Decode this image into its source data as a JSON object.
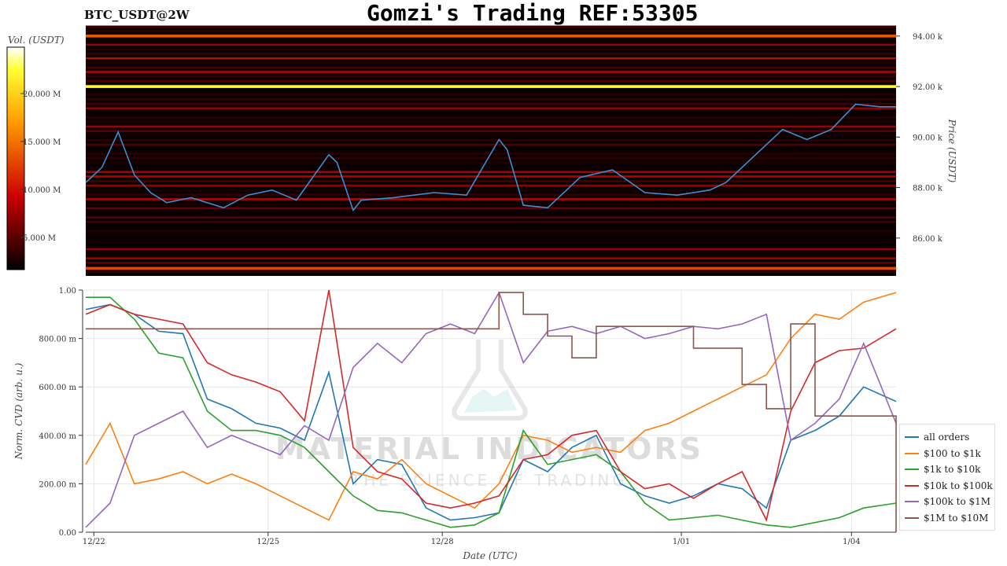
{
  "header": {
    "symbol": "BTC_USDT@2W",
    "title": "Gomzi's Trading REF:53305"
  },
  "colorbar": {
    "label": "Vol. (USDT)",
    "ticks": [
      "20.000 M",
      "15.000 M",
      "10.000 M",
      "5.000 M"
    ]
  },
  "heatmap": {
    "ylabel": "Price (USDT)",
    "price_ticks": [
      "94.00 k",
      "92.00 k",
      "90.00 k",
      "88.00 k",
      "86.00 k"
    ]
  },
  "cvd": {
    "ylabel": "Norm. CVD (arb. u.)",
    "xlabel": "Date (UTC)",
    "y_ticks": [
      "1.00",
      "800.00 m",
      "600.00 m",
      "400.00 m",
      "200.00 m",
      "0.00"
    ],
    "x_ticks": [
      "12/22",
      "12/25",
      "12/28",
      "1/01",
      "1/04"
    ]
  },
  "watermark": {
    "brand": "MATERIAL INDICATORS",
    "tagline": "THE SCIENCE OF TRADING"
  },
  "legend": {
    "items": [
      {
        "label": "all orders",
        "color": "#1f77b4"
      },
      {
        "label": "$100 to $1k",
        "color": "#ff7f0e"
      },
      {
        "label": "$1k to $10k",
        "color": "#2ca02c"
      },
      {
        "label": "$10k to $100k",
        "color": "#d62728"
      },
      {
        "label": "$100k to $1M",
        "color": "#9467bd"
      },
      {
        "label": "$1M to $10M",
        "color": "#8c564b"
      }
    ]
  },
  "chart_data": [
    {
      "type": "heatmap",
      "title": "",
      "xlabel": "",
      "ylabel": "Price (USDT)",
      "ylim": [
        84500,
        94400
      ],
      "colorbar_range": [
        0,
        23000000
      ],
      "colormap": "hot",
      "notable_levels": [
        {
          "price": 94000,
          "volume": 12000000
        },
        {
          "price": 92000,
          "volume": 23000000
        },
        {
          "price": 84800,
          "volume": 11000000
        }
      ],
      "price_line": {
        "x": [
          0,
          2,
          4,
          6,
          8,
          10,
          13,
          17,
          20,
          23,
          26,
          30,
          31,
          33,
          34,
          38,
          43,
          47,
          51,
          52,
          54,
          57,
          61,
          65,
          69,
          73,
          77,
          79,
          82,
          86,
          89,
          92,
          95,
          98,
          100
        ],
        "y": [
          88200,
          88800,
          90200,
          88500,
          87800,
          87400,
          87600,
          87200,
          87700,
          87900,
          87500,
          89300,
          89000,
          87100,
          87500,
          87600,
          87800,
          87700,
          89900,
          89500,
          87300,
          87200,
          88400,
          88700,
          87800,
          87700,
          87900,
          88200,
          89100,
          90300,
          89900,
          90300,
          91300,
          91200,
          91200
        ]
      }
    },
    {
      "type": "line",
      "title": "",
      "xlabel": "Date (UTC)",
      "ylabel": "Norm. CVD (arb. u.)",
      "ylim": [
        0,
        1
      ],
      "categories": [
        "12/22",
        "12/25",
        "12/28",
        "1/01",
        "1/04"
      ],
      "x": [
        0,
        3,
        6,
        9,
        12,
        15,
        18,
        21,
        24,
        27,
        30,
        33,
        36,
        39,
        42,
        45,
        48,
        51,
        54,
        57,
        60,
        63,
        66,
        69,
        72,
        75,
        78,
        81,
        84,
        87,
        90,
        93,
        96,
        100
      ],
      "series": [
        {
          "name": "all orders",
          "values": [
            0.92,
            0.94,
            0.9,
            0.83,
            0.82,
            0.55,
            0.51,
            0.45,
            0.43,
            0.38,
            0.66,
            0.2,
            0.3,
            0.28,
            0.1,
            0.05,
            0.06,
            0.08,
            0.3,
            0.25,
            0.35,
            0.4,
            0.2,
            0.15,
            0.12,
            0.15,
            0.2,
            0.18,
            0.1,
            0.38,
            0.42,
            0.48,
            0.6,
            0.54
          ]
        },
        {
          "name": "$100 to $1k",
          "values": [
            0.28,
            0.45,
            0.2,
            0.22,
            0.25,
            0.2,
            0.24,
            0.2,
            0.15,
            0.1,
            0.05,
            0.25,
            0.22,
            0.3,
            0.2,
            0.15,
            0.1,
            0.2,
            0.4,
            0.38,
            0.33,
            0.35,
            0.33,
            0.42,
            0.45,
            0.5,
            0.55,
            0.6,
            0.65,
            0.8,
            0.9,
            0.88,
            0.95,
            0.99
          ]
        },
        {
          "name": "$1k to $10k",
          "values": [
            0.97,
            0.97,
            0.88,
            0.74,
            0.72,
            0.5,
            0.42,
            0.42,
            0.4,
            0.35,
            0.25,
            0.15,
            0.09,
            0.08,
            0.05,
            0.02,
            0.03,
            0.08,
            0.42,
            0.28,
            0.3,
            0.32,
            0.25,
            0.12,
            0.05,
            0.06,
            0.07,
            0.05,
            0.03,
            0.02,
            0.04,
            0.06,
            0.1,
            0.12
          ]
        },
        {
          "name": "$10k to $100k",
          "values": [
            0.9,
            0.94,
            0.9,
            0.88,
            0.86,
            0.7,
            0.65,
            0.62,
            0.58,
            0.46,
            1.0,
            0.35,
            0.25,
            0.22,
            0.12,
            0.1,
            0.12,
            0.15,
            0.3,
            0.32,
            0.4,
            0.42,
            0.25,
            0.18,
            0.2,
            0.14,
            0.2,
            0.25,
            0.05,
            0.5,
            0.7,
            0.75,
            0.76,
            0.84
          ]
        },
        {
          "name": "$100k to $1M",
          "values": [
            0.02,
            0.12,
            0.4,
            0.45,
            0.5,
            0.35,
            0.4,
            0.36,
            0.32,
            0.44,
            0.38,
            0.68,
            0.78,
            0.7,
            0.82,
            0.86,
            0.82,
            0.99,
            0.7,
            0.83,
            0.85,
            0.82,
            0.85,
            0.8,
            0.82,
            0.85,
            0.84,
            0.86,
            0.9,
            0.38,
            0.45,
            0.55,
            0.78,
            0.45
          ]
        },
        {
          "name": "$1M to $10M",
          "values": [
            0.84,
            0.84,
            0.84,
            0.84,
            0.84,
            0.84,
            0.84,
            0.84,
            0.84,
            0.84,
            0.84,
            0.84,
            0.84,
            0.84,
            0.84,
            0.84,
            0.84,
            0.99,
            0.9,
            0.81,
            0.72,
            0.85,
            0.85,
            0.85,
            0.85,
            0.76,
            0.76,
            0.61,
            0.51,
            0.86,
            0.48,
            0.48,
            0.48,
            0.0
          ]
        }
      ]
    }
  ]
}
